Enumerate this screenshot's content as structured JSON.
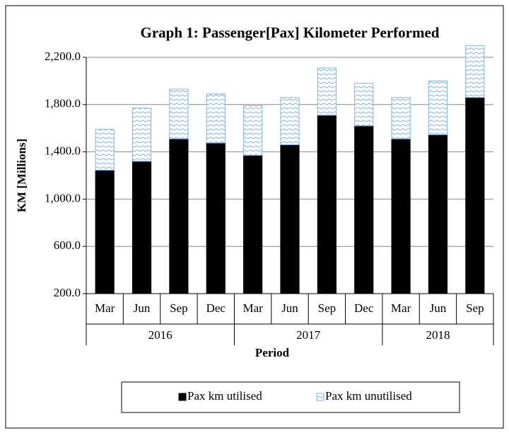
{
  "chart_data": {
    "type": "stacked_bar",
    "title": "Graph 1: Passenger[Pax] Kilometer Performed",
    "y_label": "KM  [Millions]",
    "x_label": "Period",
    "groups": [
      {
        "name": "2016",
        "categories": [
          "Mar",
          "Jun",
          "Sep",
          "Dec"
        ]
      },
      {
        "name": "2017",
        "categories": [
          "Mar",
          "Jun",
          "Sep",
          "Dec"
        ]
      },
      {
        "name": "2018",
        "categories": [
          "Mar",
          "Jun",
          "Sep"
        ]
      }
    ],
    "series": [
      {
        "name": "Pax km utilised",
        "color": "#000000",
        "values": [
          1045,
          1120,
          1310,
          1275,
          1170,
          1260,
          1510,
          1420,
          1310,
          1345,
          1660
        ]
      },
      {
        "name": "Pax km unutilised",
        "color": "#7fb2e5",
        "values": [
          345,
          450,
          420,
          415,
          420,
          400,
          400,
          360,
          350,
          455,
          440
        ]
      }
    ],
    "ylim": [
      200,
      2200
    ],
    "yticks": [
      {
        "value": 200,
        "label": "200.0"
      },
      {
        "value": 600,
        "label": "600.0"
      },
      {
        "value": 1000,
        "label": "1,000.0"
      },
      {
        "value": 1400,
        "label": "1,400.0"
      },
      {
        "value": 1800,
        "label": "1,800.0"
      },
      {
        "value": 2200,
        "label": "2,200.0"
      }
    ],
    "grid": true,
    "legend": "bottom"
  }
}
